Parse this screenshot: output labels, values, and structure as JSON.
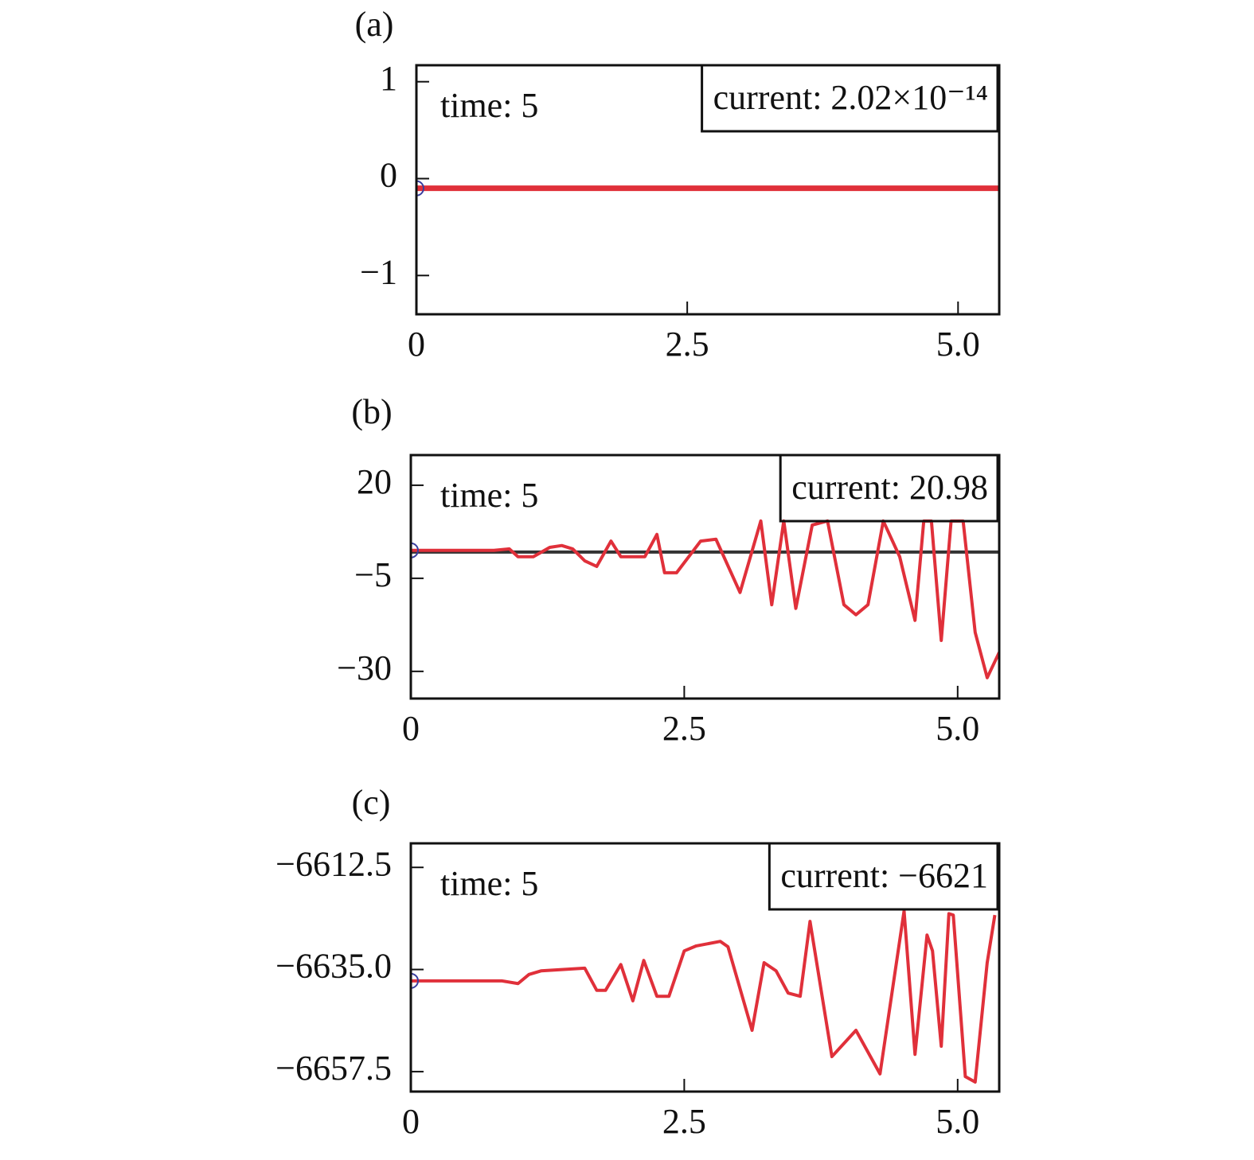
{
  "chart_data": [
    {
      "type": "line",
      "title": "(a)",
      "annotations": [
        "time: 5",
        "current: 2.02×10⁻¹⁴"
      ],
      "series": [
        {
          "color": "#e0303a",
          "x": [
            0,
            5.38
          ],
          "values": [
            -0.1,
            -0.1
          ]
        }
      ],
      "xlim": [
        0,
        5.38
      ],
      "xticks": [
        0,
        2.5,
        {
          "value": 5,
          "label": "5.0"
        }
      ],
      "ylim": [
        -1.4,
        1.17
      ],
      "yticks": [
        {
          "value": -1,
          "label": "−1"
        },
        0,
        1
      ]
    },
    {
      "type": "line",
      "title": "(b)",
      "annotations": [
        "time: 5",
        "current: 20.98"
      ],
      "series": [
        {
          "color": "#333333",
          "x": [
            0,
            5.38
          ],
          "values": [
            2.05,
            2.05
          ]
        },
        {
          "color": "#e0303a",
          "x": [
            0,
            0.76,
            0.9,
            0.98,
            1.12,
            1.27,
            1.38,
            1.48,
            1.59,
            1.7,
            1.83,
            1.92,
            2.14,
            2.25,
            2.32,
            2.43,
            2.65,
            2.79,
            3.01,
            3.2,
            3.3,
            3.41,
            3.52,
            3.67,
            3.81,
            3.96,
            4.07,
            4.18,
            4.32,
            4.47,
            4.61,
            4.69,
            4.76,
            4.85,
            4.94,
            5.05,
            5.16,
            5.27,
            5.38
          ],
          "values": [
            2.5,
            2.5,
            2.9,
            0.8,
            0.8,
            3.3,
            3.8,
            2.9,
            -0.3,
            -1.8,
            5.0,
            0.8,
            0.8,
            6.8,
            -3.5,
            -3.5,
            5.0,
            5.5,
            -8.8,
            10.4,
            -12.1,
            10.4,
            -13.1,
            9.3,
            10.4,
            -12.1,
            -14.8,
            -12.1,
            10.4,
            0.8,
            -16.3,
            10.4,
            10.4,
            -21.7,
            10.4,
            10.4,
            -19.5,
            -31.7,
            -24.9
          ]
        }
      ],
      "xlim": [
        0,
        5.38
      ],
      "xticks": [
        0,
        2.5,
        {
          "value": 5,
          "label": "5.0"
        }
      ],
      "ylim": [
        -37.3,
        28.1
      ],
      "yticks": [
        {
          "value": -30,
          "label": "−30"
        },
        {
          "value": -5,
          "label": "−5"
        },
        20
      ]
    },
    {
      "type": "line",
      "title": "(c)",
      "annotations": [
        "time: 5",
        "current: −6621"
      ],
      "series": [
        {
          "color": "#e0303a",
          "x": [
            0,
            0.83,
            0.98,
            1.08,
            1.19,
            1.59,
            1.7,
            1.78,
            1.92,
            2.03,
            2.13,
            2.25,
            2.36,
            2.5,
            2.61,
            2.83,
            2.9,
            3.12,
            3.23,
            3.34,
            3.45,
            3.56,
            3.65,
            3.85,
            4.07,
            4.29,
            4.51,
            4.61,
            4.72,
            4.77,
            4.85,
            4.92,
            4.96,
            5.07,
            5.16,
            5.27,
            5.34
          ],
          "values": [
            -6637.5,
            -6637.5,
            -6638.1,
            -6636.1,
            -6635.3,
            -6634.7,
            -6639.6,
            -6639.6,
            -6633.9,
            -6641.9,
            -6633.0,
            -6640.9,
            -6640.9,
            -6630.9,
            -6629.8,
            -6628.8,
            -6630.0,
            -6648.4,
            -6633.5,
            -6635.3,
            -6640.2,
            -6640.9,
            -6624.4,
            -6654.2,
            -6648.4,
            -6658.0,
            -6622.1,
            -6653.7,
            -6627.4,
            -6630.9,
            -6651.9,
            -6622.7,
            -6623.0,
            -6658.6,
            -6659.8,
            -6633.5,
            -6623.0
          ]
        }
      ],
      "xlim": [
        0,
        5.38
      ],
      "xticks": [
        0,
        2.5,
        {
          "value": 5,
          "label": "5.0"
        }
      ],
      "ylim": [
        -6661.9,
        -6607.2
      ],
      "yticks": [
        {
          "value": -6657.5,
          "label": "−6657.5"
        },
        {
          "value": -6635,
          "label": "−6635.0"
        },
        {
          "value": -6612.5,
          "label": "−6612.5"
        }
      ]
    }
  ]
}
